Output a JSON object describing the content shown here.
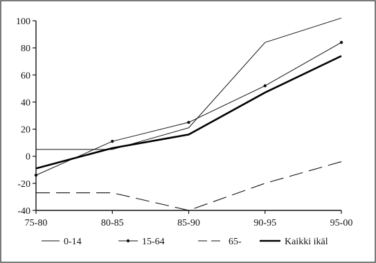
{
  "chart_data": {
    "type": "line",
    "title": "",
    "xlabel": "",
    "ylabel": "",
    "categories": [
      "75-80",
      "80-85",
      "85-90",
      "90-95",
      "95-00"
    ],
    "ylim": [
      -40,
      100
    ],
    "yticks": [
      -40,
      -20,
      0,
      20,
      40,
      60,
      80,
      100
    ],
    "ytick_labels": [
      "-40",
      "-20",
      "0",
      "20",
      "40",
      "60",
      "80",
      "100"
    ],
    "grid": false,
    "legend_position": "bottom",
    "series": [
      {
        "name": "0-14",
        "values": [
          5,
          5,
          21,
          84,
          102
        ],
        "style": "thin",
        "color": "#111111"
      },
      {
        "name": "15-64",
        "values": [
          -14,
          11,
          25,
          52,
          84
        ],
        "style": "dots",
        "color": "#111111"
      },
      {
        "name": "65-",
        "values": [
          -27,
          -27,
          -40,
          -20,
          -4
        ],
        "style": "dashed",
        "color": "#111111"
      },
      {
        "name": "Kaikki ikäl",
        "values": [
          -9,
          6,
          16,
          47,
          74
        ],
        "style": "thick",
        "color": "#000000"
      }
    ]
  }
}
